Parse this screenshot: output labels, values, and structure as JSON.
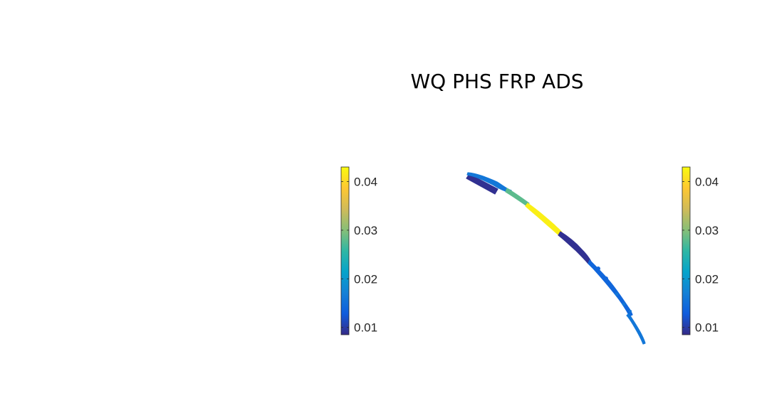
{
  "chart_data": [
    {
      "type": "colorbar",
      "title": "",
      "colormap": "parula",
      "clim": [
        0.0085,
        0.043
      ],
      "tick_labels": [
        "0.01",
        "0.02",
        "0.03",
        "0.04"
      ],
      "ticks": [
        0.01,
        0.02,
        0.03,
        0.04
      ]
    },
    {
      "type": "map",
      "title": "WQ PHS FRP ADS",
      "colormap": "parula",
      "clim": [
        0.0085,
        0.043
      ],
      "tick_labels": [
        "0.01",
        "0.02",
        "0.03",
        "0.04"
      ],
      "ticks": [
        0.01,
        0.02,
        0.03,
        0.04
      ],
      "segments": [
        {
          "value": 0.009
        },
        {
          "value": 0.016
        },
        {
          "value": 0.028
        },
        {
          "value": 0.042
        },
        {
          "value": 0.009
        },
        {
          "value": 0.014
        },
        {
          "value": 0.016
        }
      ]
    }
  ],
  "colors": {
    "parula": [
      "#352a87",
      "#0f5cdd",
      "#1481d6",
      "#06a4ca",
      "#2eb7a4",
      "#87bf77",
      "#d1bb59",
      "#fec832",
      "#f9fb0e"
    ]
  }
}
